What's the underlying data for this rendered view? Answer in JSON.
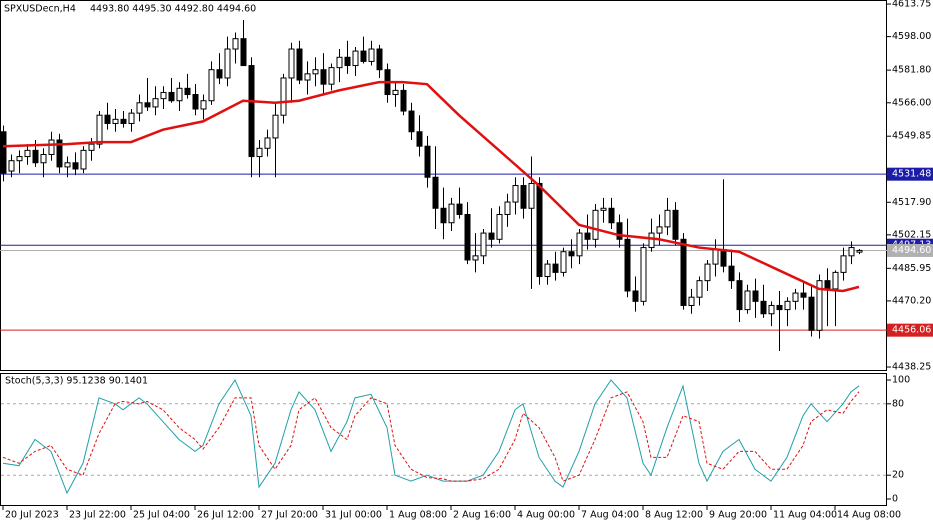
{
  "chart_data": [
    {
      "type": "candlestick",
      "title": "SPXUSDecn,H4",
      "subtitle": "4493.80 4495.30 4492.80 4494.60",
      "categories": [
        "20 Jul 2023",
        null,
        null,
        null,
        null,
        null,
        null,
        null,
        "23 Jul 22:00",
        null,
        null,
        null,
        null,
        null,
        null,
        null,
        "25 Jul 04:00",
        null,
        null,
        null,
        null,
        null,
        null,
        null,
        "26 Jul 12:00",
        null,
        null,
        null,
        null,
        null,
        null,
        null,
        "27 Jul 20:00",
        null,
        null,
        null,
        null,
        null,
        null,
        null,
        "31 Jul 00:00",
        null,
        null,
        null,
        null,
        null,
        null,
        null,
        "1 Aug 08:00",
        null,
        null,
        null,
        null,
        null,
        null,
        null,
        "2 Aug 16:00",
        null,
        null,
        null,
        null,
        null,
        null,
        null,
        "4 Aug 00:00",
        null,
        null,
        null,
        null,
        null,
        null,
        null,
        "7 Aug 04:00",
        null,
        null,
        null,
        null,
        null,
        null,
        null,
        "8 Aug 12:00",
        null,
        null,
        null,
        null,
        null,
        null,
        null,
        "9 Aug 20:00",
        null,
        null,
        null,
        null,
        null,
        null,
        null,
        "11 Aug 04:00",
        null,
        null,
        null,
        null,
        null,
        null,
        null,
        "14 Aug 08:00",
        null,
        null,
        null
      ],
      "ohlc": [
        [
          4552,
          4555,
          4528,
          4532
        ],
        [
          4533,
          4541,
          4530,
          4538
        ],
        [
          4538,
          4543,
          4532,
          4540
        ],
        [
          4540,
          4546,
          4536,
          4543
        ],
        [
          4543,
          4548,
          4535,
          4537
        ],
        [
          4537,
          4544,
          4530,
          4541
        ],
        [
          4541,
          4552,
          4538,
          4548
        ],
        [
          4548,
          4551,
          4532,
          4535
        ],
        [
          4535,
          4540,
          4530,
          4537
        ],
        [
          4537,
          4542,
          4531,
          4534
        ],
        [
          4534,
          4545,
          4532,
          4543
        ],
        [
          4543,
          4549,
          4538,
          4546
        ],
        [
          4546,
          4562,
          4544,
          4560
        ],
        [
          4560,
          4566,
          4553,
          4556
        ],
        [
          4556,
          4563,
          4552,
          4558
        ],
        [
          4558,
          4562,
          4554,
          4556
        ],
        [
          4556,
          4563,
          4552,
          4561
        ],
        [
          4561,
          4570,
          4557,
          4566
        ],
        [
          4566,
          4578,
          4562,
          4564
        ],
        [
          4564,
          4574,
          4560,
          4568
        ],
        [
          4568,
          4574,
          4563,
          4571
        ],
        [
          4571,
          4578,
          4566,
          4567
        ],
        [
          4567,
          4576,
          4562,
          4573
        ],
        [
          4573,
          4580,
          4568,
          4570
        ],
        [
          4570,
          4575,
          4560,
          4563
        ],
        [
          4563,
          4570,
          4558,
          4567
        ],
        [
          4567,
          4586,
          4565,
          4582
        ],
        [
          4582,
          4590,
          4575,
          4578
        ],
        [
          4578,
          4598,
          4574,
          4592
        ],
        [
          4592,
          4600,
          4585,
          4597
        ],
        [
          4597,
          4606,
          4584,
          4584
        ],
        [
          4584,
          4588,
          4530,
          4540
        ],
        [
          4540,
          4548,
          4530,
          4544
        ],
        [
          4544,
          4553,
          4540,
          4549
        ],
        [
          4549,
          4566,
          4530,
          4560
        ],
        [
          4560,
          4580,
          4556,
          4578
        ],
        [
          4578,
          4595,
          4566,
          4592
        ],
        [
          4592,
          4596,
          4575,
          4577
        ],
        [
          4577,
          4586,
          4570,
          4580
        ],
        [
          4580,
          4588,
          4574,
          4582
        ],
        [
          4582,
          4590,
          4570,
          4575
        ],
        [
          4575,
          4585,
          4572,
          4583
        ],
        [
          4583,
          4592,
          4576,
          4588
        ],
        [
          4588,
          4596,
          4580,
          4584
        ],
        [
          4584,
          4593,
          4579,
          4591
        ],
        [
          4591,
          4598,
          4585,
          4586
        ],
        [
          4586,
          4596,
          4584,
          4592
        ],
        [
          4592,
          4594,
          4578,
          4582
        ],
        [
          4582,
          4585,
          4566,
          4570
        ],
        [
          4570,
          4576,
          4564,
          4572
        ],
        [
          4572,
          4575,
          4560,
          4562
        ],
        [
          4562,
          4566,
          4548,
          4552
        ],
        [
          4552,
          4560,
          4540,
          4545
        ],
        [
          4545,
          4550,
          4525,
          4530
        ],
        [
          4530,
          4545,
          4505,
          4515
        ],
        [
          4515,
          4525,
          4500,
          4508
        ],
        [
          4508,
          4520,
          4504,
          4517
        ],
        [
          4517,
          4525,
          4510,
          4512
        ],
        [
          4512,
          4518,
          4488,
          4490
        ],
        [
          4490,
          4503,
          4484,
          4492
        ],
        [
          4492,
          4505,
          4488,
          4503
        ],
        [
          4503,
          4515,
          4496,
          4500
        ],
        [
          4500,
          4516,
          4498,
          4512
        ],
        [
          4512,
          4522,
          4506,
          4518
        ],
        [
          4518,
          4530,
          4512,
          4526
        ],
        [
          4526,
          4530,
          4510,
          4515
        ],
        [
          4515,
          4540,
          4476,
          4527
        ],
        [
          4527,
          4530,
          4478,
          4482
        ],
        [
          4482,
          4490,
          4478,
          4488
        ],
        [
          4488,
          4494,
          4480,
          4484
        ],
        [
          4484,
          4496,
          4482,
          4494
        ],
        [
          4494,
          4500,
          4486,
          4492
        ],
        [
          4492,
          4505,
          4488,
          4503
        ],
        [
          4503,
          4512,
          4495,
          4500
        ],
        [
          4500,
          4517,
          4496,
          4514
        ],
        [
          4514,
          4520,
          4508,
          4515
        ],
        [
          4515,
          4520,
          4505,
          4508
        ],
        [
          4508,
          4512,
          4496,
          4500
        ],
        [
          4500,
          4510,
          4472,
          4475
        ],
        [
          4475,
          4482,
          4465,
          4470
        ],
        [
          4470,
          4498,
          4468,
          4496
        ],
        [
          4496,
          4510,
          4494,
          4503
        ],
        [
          4503,
          4512,
          4497,
          4506
        ],
        [
          4506,
          4520,
          4502,
          4514
        ],
        [
          4514,
          4518,
          4497,
          4500
        ],
        [
          4500,
          4503,
          4466,
          4468
        ],
        [
          4468,
          4476,
          4464,
          4472
        ],
        [
          4472,
          4482,
          4468,
          4480
        ],
        [
          4480,
          4490,
          4475,
          4488
        ],
        [
          4488,
          4500,
          4482,
          4495
        ],
        [
          4495,
          4529,
          4484,
          4487
        ],
        [
          4487,
          4495,
          4476,
          4480
        ],
        [
          4480,
          4484,
          4460,
          4466
        ],
        [
          4466,
          4478,
          4464,
          4475
        ],
        [
          4475,
          4481,
          4462,
          4470
        ],
        [
          4470,
          4478,
          4462,
          4464
        ],
        [
          4464,
          4470,
          4458,
          4468
        ],
        [
          4468,
          4475,
          4446,
          4466
        ],
        [
          4466,
          4472,
          4458,
          4470
        ],
        [
          4470,
          4476,
          4466,
          4474
        ],
        [
          4474,
          4480,
          4466,
          4472
        ],
        [
          4472,
          4478,
          4453,
          4456
        ],
        [
          4456,
          4483,
          4452,
          4480
        ],
        [
          4480,
          4486,
          4458,
          4476
        ],
        [
          4476,
          4485,
          4458,
          4484
        ],
        [
          4484,
          4496,
          4480,
          4492
        ],
        [
          4492,
          4499,
          4488,
          4496
        ],
        [
          4493.8,
          4495.3,
          4492.8,
          4494.6
        ]
      ],
      "overlay": {
        "color": "#e01010",
        "x": [
          0,
          8,
          12,
          16,
          20,
          25,
          30,
          34,
          37,
          42,
          47,
          50,
          53,
          57,
          62,
          67,
          72,
          77,
          82,
          87,
          92,
          97,
          102,
          105,
          107
        ],
        "values": [
          4545,
          4546,
          4547,
          4547,
          4553,
          4557,
          4567,
          4566,
          4567,
          4572,
          4576,
          4576,
          4575,
          4560,
          4543,
          4526,
          4507,
          4502,
          4500,
          4496,
          4494,
          4485,
          4476,
          4475,
          4477
        ]
      },
      "levels": [
        {
          "value": 4531.48,
          "color": "#1c1ca8"
        },
        {
          "value": 4497.13,
          "color": "#1c1ca8"
        },
        {
          "value": 4456.06,
          "color": "#d42020"
        },
        {
          "value": 4494.6,
          "label": "4494.60",
          "color": "#b0b0b0"
        }
      ],
      "ylim": [
        4436.8,
        4615.7
      ],
      "yticks": [
        {
          "value": 4613.75,
          "label": "4613.75"
        },
        {
          "value": 4598,
          "label": "4598.00"
        },
        {
          "value": 4581.8,
          "label": "4581.80"
        },
        {
          "value": 4566,
          "label": "4566.00"
        },
        4549.85,
        {
          "value": 4517.9,
          "label": "4517.90"
        },
        4502.15,
        4485.95,
        {
          "value": 4470.2,
          "label": "4470.20"
        },
        4438.25
      ]
    },
    {
      "type": "line",
      "title": "Stoch(5,3,3) 95.1238 90.1401",
      "x": [
        0,
        2,
        4,
        6,
        8,
        10,
        12,
        14,
        15,
        17,
        18,
        20,
        22,
        24,
        25,
        27,
        29,
        31,
        32,
        34,
        36,
        37,
        39,
        41,
        43,
        44,
        46,
        48,
        49,
        51,
        53,
        55,
        56,
        58,
        60,
        62,
        64,
        65,
        67,
        69,
        70,
        72,
        74,
        76,
        78,
        80,
        81,
        83,
        85,
        87,
        88,
        90,
        92,
        94,
        96,
        98,
        100,
        101,
        103,
        105,
        106,
        107
      ],
      "series": [
        {
          "color": "#20a0a8",
          "values": [
            30,
            28,
            50,
            40,
            5,
            30,
            85,
            80,
            75,
            85,
            80,
            65,
            50,
            40,
            45,
            80,
            100,
            70,
            10,
            30,
            75,
            90,
            75,
            40,
            65,
            85,
            88,
            60,
            20,
            15,
            20,
            15,
            15,
            15,
            20,
            40,
            75,
            80,
            35,
            15,
            10,
            40,
            80,
            100,
            85,
            30,
            20,
            60,
            95,
            30,
            15,
            40,
            50,
            25,
            15,
            35,
            70,
            80,
            65,
            80,
            90,
            95.1238
          ]
        },
        {
          "color": "#e01010",
          "dashed": true,
          "values": [
            35,
            30,
            40,
            45,
            25,
            20,
            55,
            80,
            82,
            80,
            82,
            75,
            60,
            50,
            42,
            60,
            85,
            85,
            45,
            25,
            45,
            75,
            85,
            60,
            50,
            70,
            85,
            80,
            45,
            25,
            18,
            17,
            15,
            15,
            17,
            25,
            50,
            72,
            60,
            35,
            15,
            20,
            50,
            85,
            90,
            65,
            35,
            35,
            70,
            65,
            30,
            25,
            40,
            40,
            25,
            25,
            45,
            65,
            75,
            72,
            82,
            90.1401
          ]
        }
      ],
      "levels": [
        80,
        20
      ],
      "ylim": [
        -5.9,
        105.9
      ],
      "yticks": [
        0,
        20,
        80,
        100
      ]
    }
  ]
}
